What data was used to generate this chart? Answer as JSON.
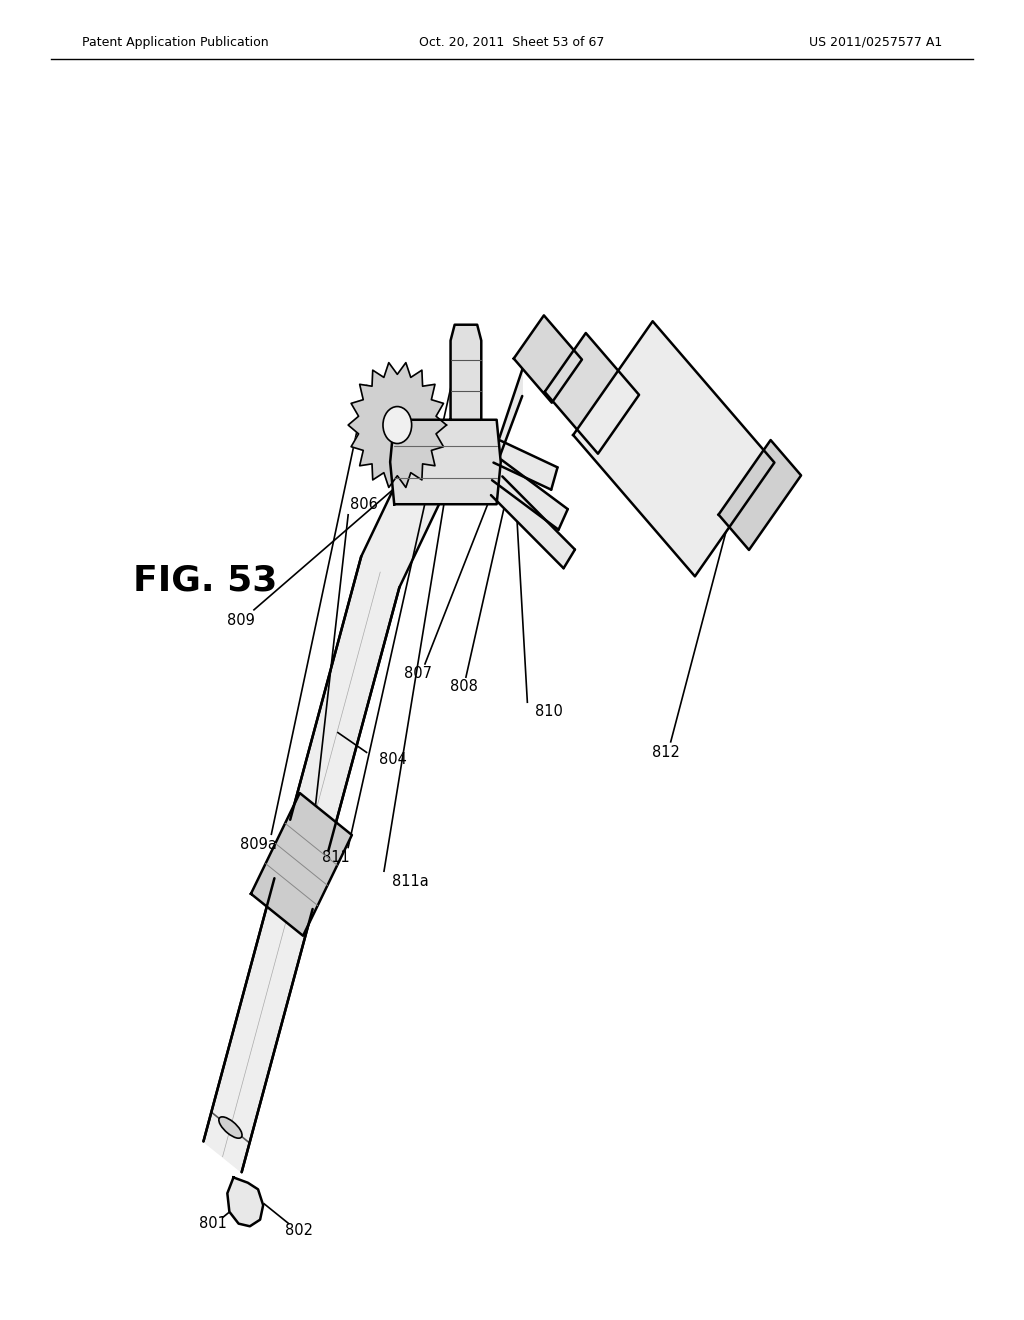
{
  "bg_color": "#ffffff",
  "line_color": "#000000",
  "figure_label": "FIG. 53",
  "header_left": "Patent Application Publication",
  "header_center": "Oct. 20, 2011  Sheet 53 of 67",
  "header_right": "US 2011/0257577 A1"
}
